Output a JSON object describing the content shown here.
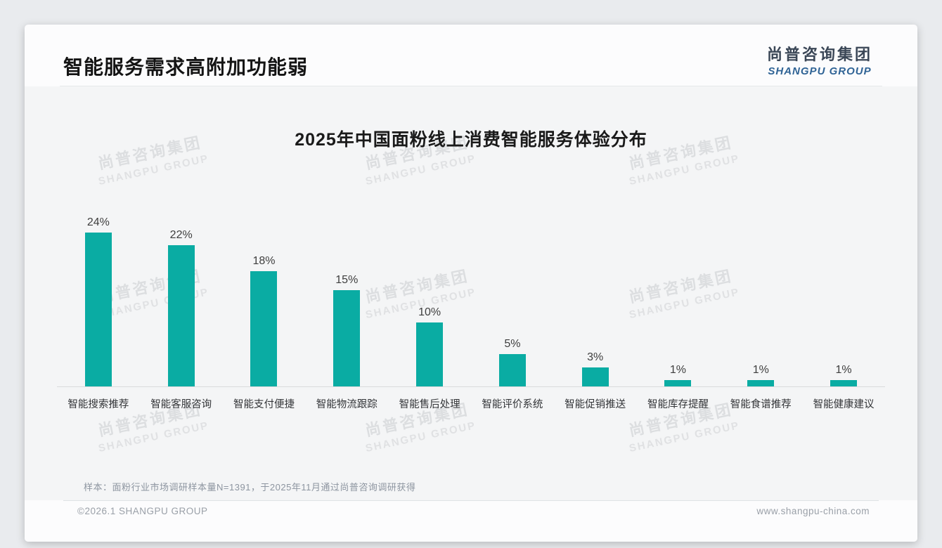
{
  "page": {
    "title": "智能服务需求高附加功能弱",
    "logo": {
      "cn": "尚普咨询集团",
      "en": "SHANGPU GROUP"
    },
    "watermark": {
      "cn": "尚普咨询集团",
      "en": "SHANGPU GROUP"
    },
    "footer": {
      "sample_note": "样本：面粉行业市场调研样本量N=1391，于2025年11月通过尚普咨询调研获得",
      "copyright": "©2026.1 SHANGPU GROUP",
      "website": "www.shangpu-china.com"
    }
  },
  "chart_data": {
    "type": "bar",
    "title": "2025年中国面粉线上消费智能服务体验分布",
    "categories": [
      "智能搜索推荐",
      "智能客服咨询",
      "智能支付便捷",
      "智能物流跟踪",
      "智能售后处理",
      "智能评价系统",
      "智能促销推送",
      "智能库存提醒",
      "智能食谱推荐",
      "智能健康建议"
    ],
    "values": [
      24,
      22,
      18,
      15,
      10,
      5,
      3,
      1,
      1,
      1
    ],
    "value_suffix": "%",
    "bar_color": "#0aaca3",
    "xlabel": "",
    "ylabel": "",
    "ylim": [
      0,
      26
    ],
    "grid": false,
    "legend": null
  }
}
